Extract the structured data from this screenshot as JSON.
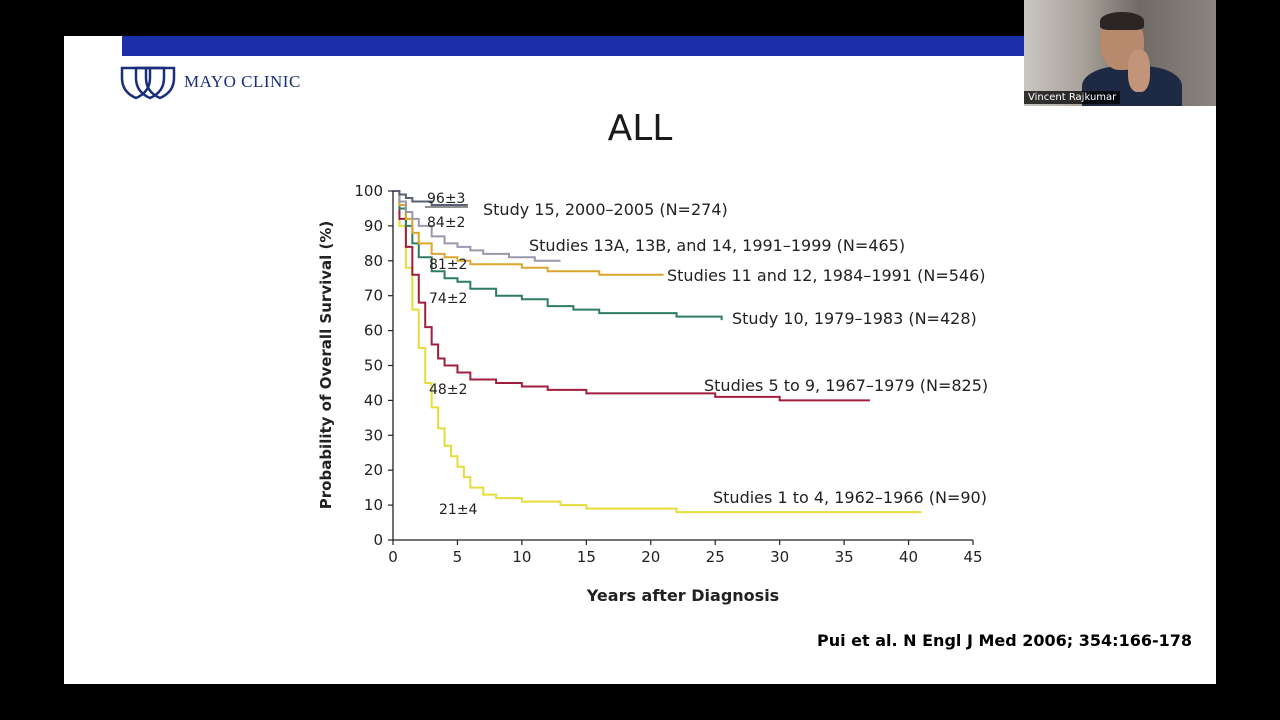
{
  "slide": {
    "logo_text": "MAYO CLINIC",
    "title": "ALL",
    "citation": "Pui et al. N Engl J Med 2006; 354:166-178",
    "colors": {
      "topbar": "#1b2fa8",
      "logo": "#1a2f7a"
    }
  },
  "video": {
    "participant_name": "Vincent Rajkumar"
  },
  "chart_data": {
    "type": "line",
    "title": "",
    "xlabel": "Years after Diagnosis",
    "ylabel": "Probability of Overall Survival (%)",
    "xlim": [
      0,
      45
    ],
    "ylim": [
      0,
      100
    ],
    "xticks": [
      0,
      5,
      10,
      15,
      20,
      25,
      30,
      35,
      40,
      45
    ],
    "yticks": [
      0,
      10,
      20,
      30,
      40,
      50,
      60,
      70,
      80,
      90,
      100
    ],
    "grid": false,
    "series": [
      {
        "name": "Study 15, 2000–2005 (N=274)",
        "color": "#5b5f73",
        "point_label": "96±3",
        "x": [
          0,
          0.5,
          1,
          1.5,
          2,
          3,
          4,
          5.8
        ],
        "y": [
          100,
          99,
          98,
          97,
          97,
          96,
          96,
          96
        ]
      },
      {
        "name": "Studies 13A, 13B, and 14, 1991–1999 (N=465)",
        "color": "#9a98ad",
        "point_label": "84±2",
        "x": [
          0,
          0.5,
          1,
          1.5,
          2,
          3,
          4,
          5,
          6,
          7,
          8,
          9,
          10,
          11,
          12,
          13
        ],
        "y": [
          100,
          97,
          94,
          92,
          90,
          87,
          85,
          84,
          83,
          82,
          82,
          81,
          81,
          80,
          80,
          80
        ]
      },
      {
        "name": "Studies 11 and 12, 1984–1991 (N=546)",
        "color": "#d9a62e",
        "point_label": "81±2",
        "x": [
          0,
          0.5,
          1,
          1.5,
          2,
          3,
          4,
          5,
          6,
          8,
          10,
          12,
          14,
          16,
          18,
          20,
          21
        ],
        "y": [
          100,
          96,
          92,
          88,
          85,
          82,
          81,
          80,
          79,
          79,
          78,
          77,
          77,
          76,
          76,
          76,
          76
        ]
      },
      {
        "name": "Study 10, 1979–1983 (N=428)",
        "color": "#2e7d63",
        "point_label": "74±2",
        "x": [
          0,
          0.5,
          1,
          1.5,
          2,
          3,
          4,
          5,
          6,
          8,
          10,
          12,
          14,
          16,
          18,
          20,
          22,
          24,
          25.5
        ],
        "y": [
          100,
          95,
          90,
          85,
          81,
          77,
          75,
          74,
          72,
          70,
          69,
          67,
          66,
          65,
          65,
          65,
          64,
          64,
          63
        ]
      },
      {
        "name": "Studies 5 to 9, 1967–1979 (N=825)",
        "color": "#a11e3c",
        "point_label": "48±2",
        "x": [
          0,
          0.5,
          1,
          1.5,
          2,
          2.5,
          3,
          3.5,
          4,
          5,
          6,
          8,
          10,
          12,
          15,
          20,
          25,
          30,
          35,
          37
        ],
        "y": [
          100,
          92,
          84,
          76,
          68,
          61,
          56,
          52,
          50,
          48,
          46,
          45,
          44,
          43,
          42,
          42,
          41,
          40,
          40,
          40
        ]
      },
      {
        "name": "Studies 1 to 4, 1962–1966 (N=90)",
        "color": "#e6dc3c",
        "point_label": "21±4",
        "x": [
          0,
          0.5,
          1,
          1.5,
          2,
          2.5,
          3,
          3.5,
          4,
          4.5,
          5,
          5.5,
          6,
          7,
          8,
          10,
          12,
          13,
          14,
          15,
          17,
          20,
          22,
          30,
          35,
          41
        ],
        "y": [
          100,
          90,
          78,
          66,
          55,
          45,
          38,
          32,
          27,
          24,
          21,
          18,
          15,
          13,
          12,
          11,
          11,
          10,
          10,
          9,
          9,
          9,
          8,
          8,
          8,
          8
        ]
      }
    ]
  }
}
